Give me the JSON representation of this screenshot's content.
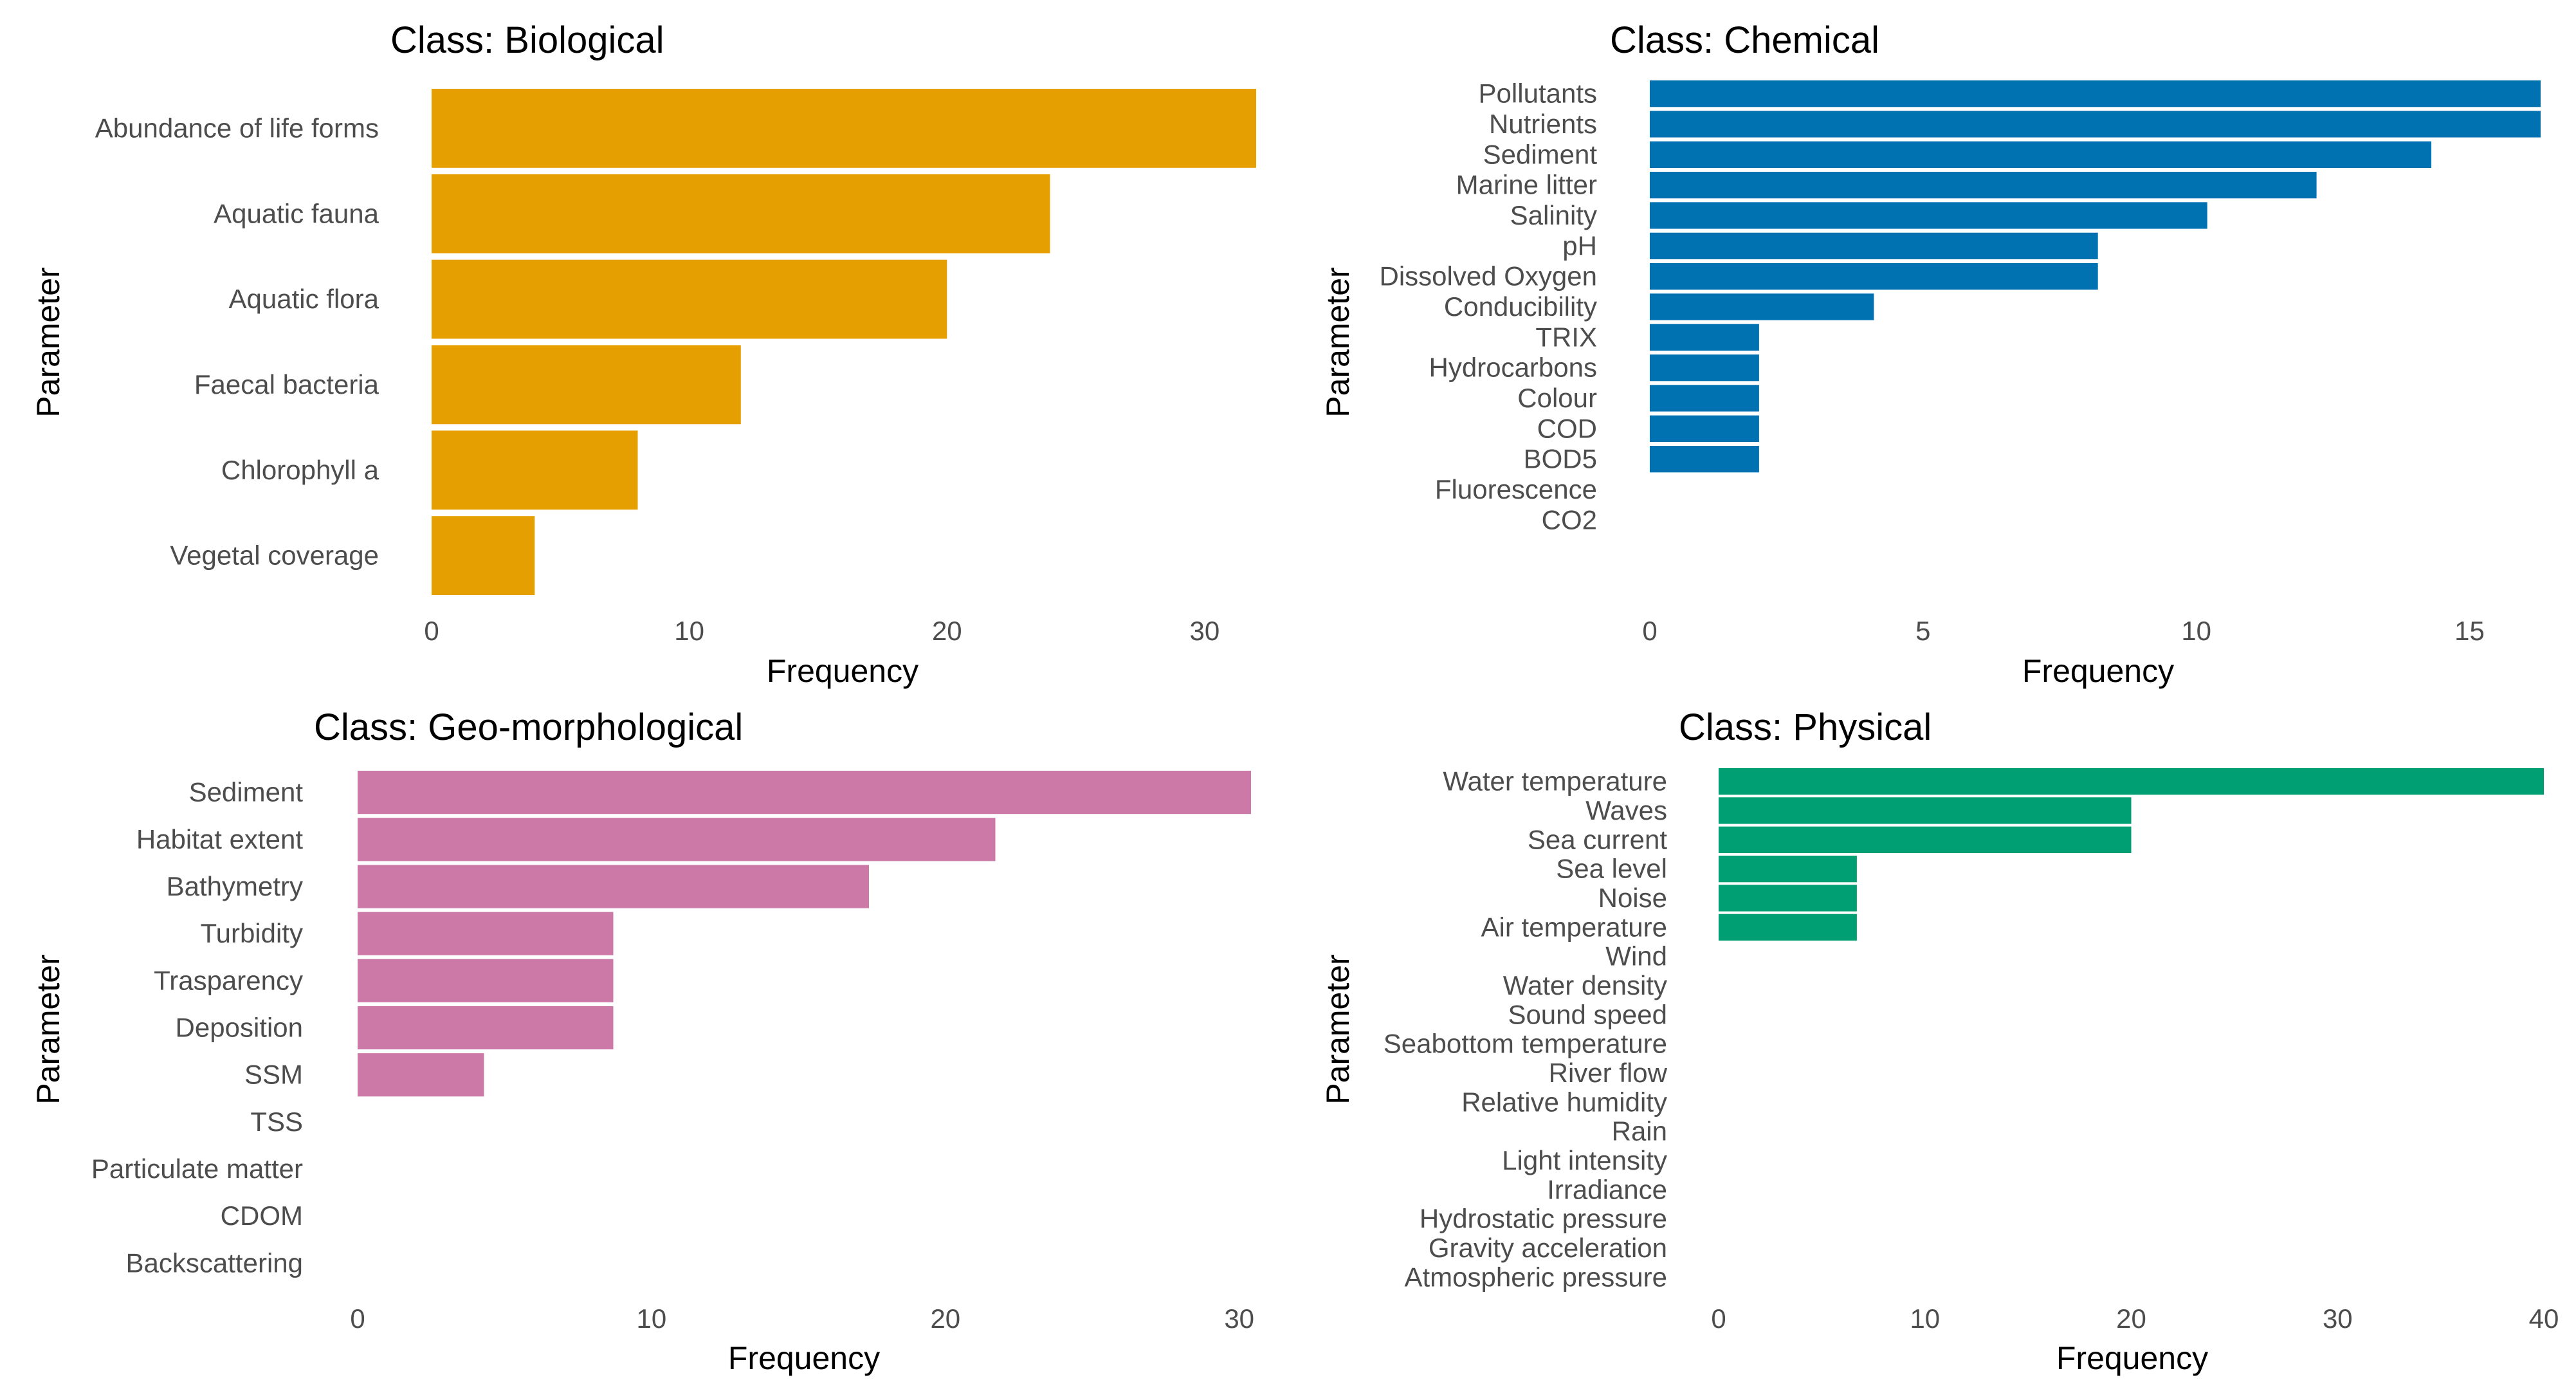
{
  "chart_data": [
    {
      "type": "bar",
      "orientation": "horizontal",
      "title": "Class: Biological",
      "xlabel": "Frequency",
      "ylabel": "Parameter",
      "color": "#E69F00",
      "xlim": [
        0,
        32
      ],
      "xticks": [
        0,
        10,
        20,
        30
      ],
      "categories": [
        "Abundance of life forms",
        "Aquatic fauna",
        "Aquatic flora",
        "Faecal bacteria",
        "Chlorophyll a",
        "Vegetal coverage"
      ],
      "values": [
        32,
        24,
        20,
        12,
        8,
        4
      ]
    },
    {
      "type": "bar",
      "orientation": "horizontal",
      "title": "Class: Chemical",
      "xlabel": "Frequency",
      "ylabel": "Parameter",
      "color": "#0072B2",
      "xlim": [
        0,
        16.3
      ],
      "xticks": [
        0,
        5,
        10,
        15
      ],
      "categories": [
        "Pollutants",
        "Nutrients",
        "Sediment",
        "Marine litter",
        "Salinity",
        "pH",
        "Dissolved Oxygen",
        "Conducibility",
        "TRIX",
        "Hydrocarbons",
        "Colour",
        "COD",
        "BOD5",
        "Fluorescence",
        "CO2"
      ],
      "values": [
        16.3,
        16.3,
        14.3,
        12.2,
        10.2,
        8.2,
        8.2,
        4.1,
        2,
        2,
        2,
        2,
        2,
        0,
        0
      ]
    },
    {
      "type": "bar",
      "orientation": "horizontal",
      "title": "Class: Geo-morphological",
      "xlabel": "Frequency",
      "ylabel": "Parameter",
      "color": "#CC79A7",
      "xlim": [
        0,
        30.4
      ],
      "xticks": [
        0,
        10,
        20,
        30
      ],
      "categories": [
        "Sediment",
        "Habitat extent",
        "Bathymetry",
        "Turbidity",
        "Trasparency",
        "Deposition",
        "SSM",
        "TSS",
        "Particulate matter",
        "CDOM",
        "Backscattering"
      ],
      "values": [
        30.4,
        21.7,
        17.4,
        8.7,
        8.7,
        8.7,
        4.3,
        0,
        0,
        0,
        0
      ]
    },
    {
      "type": "bar",
      "orientation": "horizontal",
      "title": "Class: Physical",
      "xlabel": "Frequency",
      "ylabel": "Parameter",
      "color": "#009E73",
      "xlim": [
        0,
        40
      ],
      "xticks": [
        0,
        10,
        20,
        30,
        40
      ],
      "categories": [
        "Water temperature",
        "Waves",
        "Sea current",
        "Sea level",
        "Noise",
        "Air temperature",
        "Wind",
        "Water density",
        "Sound speed",
        "Seabottom temperature",
        "River flow",
        "Relative humidity",
        "Rain",
        "Light intensity",
        "Irradiance",
        "Hydrostatic pressure",
        "Gravity acceleration",
        "Atmospheric pressure"
      ],
      "values": [
        40,
        20,
        20,
        6.7,
        6.7,
        6.7,
        0,
        0,
        0,
        0,
        0,
        0,
        0,
        0,
        0,
        0,
        0,
        0
      ]
    }
  ]
}
